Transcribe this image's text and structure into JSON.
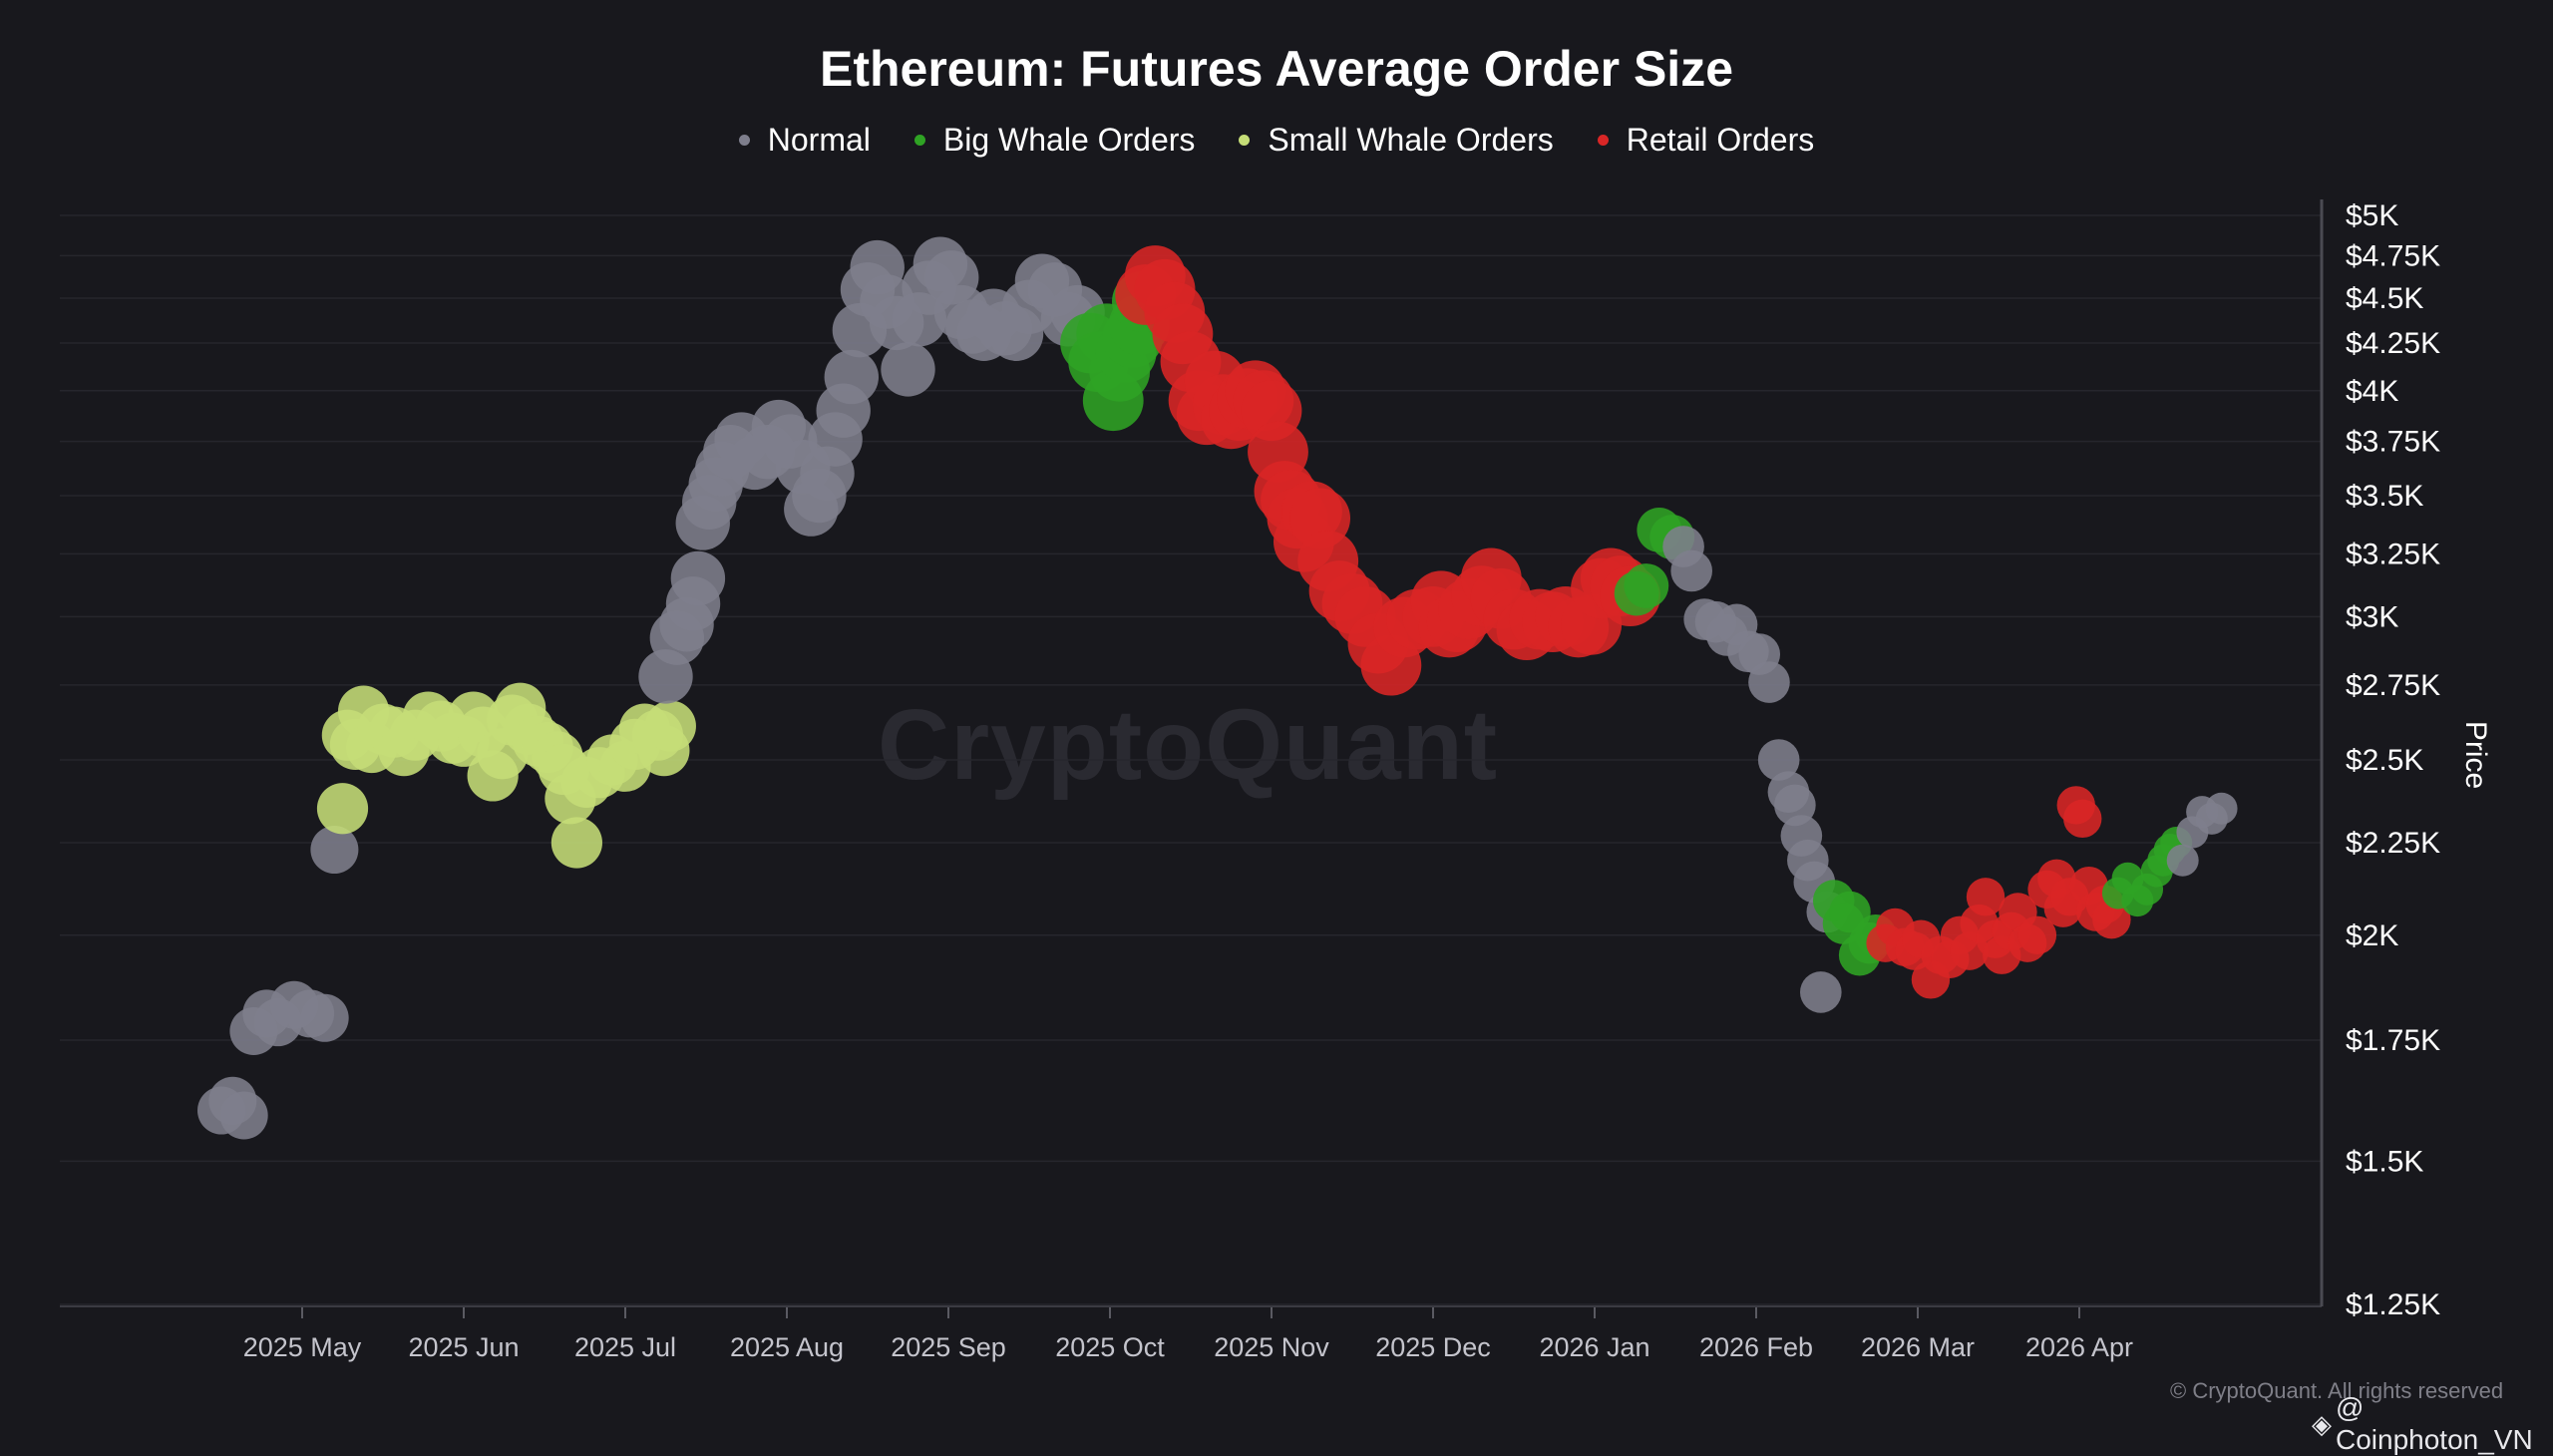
{
  "chart_data": {
    "type": "scatter",
    "title": "Ethereum: Futures Average Order Size",
    "legend": [
      {
        "name": "Normal",
        "color": "#7e7e8c"
      },
      {
        "name": "Big Whale Orders",
        "color": "#2fa324"
      },
      {
        "name": "Small Whale Orders",
        "color": "#c5dd77"
      },
      {
        "name": "Retail Orders",
        "color": "#d92626"
      }
    ],
    "ylabel": "Price",
    "yscale": "log",
    "ylim": [
      1250,
      5000
    ],
    "yticks": [
      {
        "value": 5000,
        "label": "$5K"
      },
      {
        "value": 4750,
        "label": "$4.75K"
      },
      {
        "value": 4500,
        "label": "$4.5K"
      },
      {
        "value": 4250,
        "label": "$4.25K"
      },
      {
        "value": 4000,
        "label": "$4K"
      },
      {
        "value": 3750,
        "label": "$3.75K"
      },
      {
        "value": 3500,
        "label": "$3.5K"
      },
      {
        "value": 3250,
        "label": "$3.25K"
      },
      {
        "value": 3000,
        "label": "$3K"
      },
      {
        "value": 2750,
        "label": "$2.75K"
      },
      {
        "value": 2500,
        "label": "$2.5K"
      },
      {
        "value": 2250,
        "label": "$2.25K"
      },
      {
        "value": 2000,
        "label": "$2K"
      },
      {
        "value": 1750,
        "label": "$1.75K"
      },
      {
        "value": 1500,
        "label": "$1.5K"
      },
      {
        "value": 1250,
        "label": "$1.25K"
      }
    ],
    "xlim": [
      -1.5,
      12.5
    ],
    "xticks": [
      {
        "value": 0,
        "label": "2025 May"
      },
      {
        "value": 1,
        "label": "2025 Jun"
      },
      {
        "value": 2,
        "label": "2025 Jul"
      },
      {
        "value": 3,
        "label": "2025 Aug"
      },
      {
        "value": 4,
        "label": "2025 Sep"
      },
      {
        "value": 5,
        "label": "2025 Oct"
      },
      {
        "value": 6,
        "label": "2025 Nov"
      },
      {
        "value": 7,
        "label": "2025 Dec"
      },
      {
        "value": 8,
        "label": "2026 Jan"
      },
      {
        "value": 9,
        "label": "2026 Feb"
      },
      {
        "value": 10,
        "label": "2026 Mar"
      },
      {
        "value": 11,
        "label": "2026 Apr"
      }
    ],
    "segments": [
      {
        "category": "Normal",
        "size": 15,
        "points": [
          [
            -0.5,
            1600
          ],
          [
            -0.43,
            1620
          ],
          [
            -0.36,
            1590
          ],
          [
            -0.3,
            1770
          ],
          [
            -0.22,
            1810
          ],
          [
            -0.15,
            1790
          ],
          [
            -0.05,
            1830
          ],
          [
            0.05,
            1810
          ],
          [
            0.14,
            1800
          ],
          [
            0.2,
            2230
          ]
        ]
      },
      {
        "category": "Small Whale Orders",
        "size": 16,
        "points": [
          [
            0.25,
            2350
          ],
          [
            0.28,
            2580
          ],
          [
            0.33,
            2550
          ],
          [
            0.38,
            2660
          ],
          [
            0.43,
            2540
          ],
          [
            0.5,
            2600
          ],
          [
            0.57,
            2590
          ],
          [
            0.63,
            2530
          ],
          [
            0.7,
            2580
          ],
          [
            0.78,
            2640
          ],
          [
            0.86,
            2610
          ],
          [
            0.93,
            2570
          ],
          [
            1.0,
            2560
          ],
          [
            1.06,
            2640
          ],
          [
            1.12,
            2590
          ],
          [
            1.18,
            2450
          ],
          [
            1.24,
            2520
          ],
          [
            1.3,
            2630
          ],
          [
            1.35,
            2670
          ],
          [
            1.4,
            2600
          ],
          [
            1.46,
            2560
          ],
          [
            1.52,
            2540
          ],
          [
            1.58,
            2510
          ],
          [
            1.62,
            2470
          ],
          [
            1.66,
            2380
          ],
          [
            1.7,
            2250
          ],
          [
            1.76,
            2430
          ],
          [
            1.84,
            2460
          ],
          [
            1.92,
            2500
          ],
          [
            2.0,
            2480
          ],
          [
            2.06,
            2550
          ],
          [
            2.12,
            2600
          ],
          [
            2.2,
            2580
          ],
          [
            2.24,
            2530
          ],
          [
            2.28,
            2610
          ]
        ]
      },
      {
        "category": "Normal",
        "size": 17,
        "points": [
          [
            2.25,
            2780
          ],
          [
            2.32,
            2920
          ],
          [
            2.38,
            2970
          ],
          [
            2.42,
            3050
          ],
          [
            2.45,
            3150
          ],
          [
            2.48,
            3380
          ],
          [
            2.52,
            3470
          ],
          [
            2.56,
            3550
          ],
          [
            2.6,
            3620
          ],
          [
            2.65,
            3700
          ],
          [
            2.72,
            3760
          ],
          [
            2.8,
            3650
          ],
          [
            2.88,
            3700
          ],
          [
            2.95,
            3820
          ],
          [
            3.02,
            3750
          ],
          [
            3.1,
            3630
          ],
          [
            3.15,
            3440
          ],
          [
            3.2,
            3500
          ],
          [
            3.25,
            3600
          ],
          [
            3.3,
            3760
          ],
          [
            3.35,
            3900
          ],
          [
            3.4,
            4070
          ],
          [
            3.45,
            4320
          ],
          [
            3.5,
            4550
          ],
          [
            3.56,
            4680
          ],
          [
            3.62,
            4480
          ],
          [
            3.68,
            4360
          ],
          [
            3.75,
            4110
          ],
          [
            3.82,
            4380
          ],
          [
            3.88,
            4560
          ],
          [
            3.95,
            4700
          ],
          [
            4.02,
            4620
          ],
          [
            4.08,
            4420
          ],
          [
            4.15,
            4340
          ],
          [
            4.22,
            4300
          ],
          [
            4.28,
            4400
          ],
          [
            4.35,
            4330
          ],
          [
            4.42,
            4300
          ],
          [
            4.5,
            4450
          ],
          [
            4.58,
            4600
          ],
          [
            4.66,
            4550
          ],
          [
            4.74,
            4380
          ],
          [
            4.8,
            4420
          ]
        ]
      },
      {
        "category": "Big Whale Orders",
        "size": 19,
        "points": [
          [
            4.88,
            4250
          ],
          [
            4.93,
            4150
          ],
          [
            4.98,
            4300
          ],
          [
            5.02,
            3950
          ],
          [
            5.06,
            4100
          ],
          [
            5.1,
            4200
          ],
          [
            5.14,
            4280
          ],
          [
            5.18,
            4350
          ],
          [
            5.2,
            4480
          ]
        ]
      },
      {
        "category": "Retail Orders",
        "size": 19,
        "points": [
          [
            5.22,
            4520
          ],
          [
            5.28,
            4630
          ],
          [
            5.34,
            4550
          ],
          [
            5.4,
            4420
          ],
          [
            5.45,
            4300
          ],
          [
            5.5,
            4150
          ],
          [
            5.55,
            3950
          ],
          [
            5.6,
            3880
          ],
          [
            5.65,
            4050
          ],
          [
            5.7,
            3930
          ],
          [
            5.75,
            3860
          ],
          [
            5.8,
            3900
          ],
          [
            5.85,
            3960
          ],
          [
            5.9,
            4000
          ],
          [
            5.95,
            3950
          ],
          [
            6.0,
            3900
          ],
          [
            6.04,
            3700
          ],
          [
            6.08,
            3520
          ],
          [
            6.12,
            3480
          ],
          [
            6.16,
            3400
          ],
          [
            6.2,
            3300
          ],
          [
            6.25,
            3430
          ],
          [
            6.3,
            3400
          ],
          [
            6.35,
            3220
          ],
          [
            6.42,
            3100
          ],
          [
            6.5,
            3050
          ],
          [
            6.58,
            3000
          ],
          [
            6.66,
            2900
          ],
          [
            6.74,
            2820
          ],
          [
            6.82,
            2960
          ],
          [
            6.9,
            2990
          ],
          [
            7.0,
            3000
          ],
          [
            7.05,
            3060
          ],
          [
            7.1,
            2960
          ],
          [
            7.15,
            2980
          ],
          [
            7.22,
            3030
          ],
          [
            7.3,
            3080
          ],
          [
            7.36,
            3150
          ],
          [
            7.42,
            3070
          ],
          [
            7.5,
            2990
          ],
          [
            7.58,
            2950
          ],
          [
            7.66,
            2990
          ],
          [
            7.74,
            2980
          ],
          [
            7.82,
            3000
          ],
          [
            7.9,
            2960
          ],
          [
            7.98,
            2970
          ],
          [
            8.04,
            3110
          ],
          [
            8.1,
            3150
          ],
          [
            8.16,
            3120
          ],
          [
            8.22,
            3080
          ]
        ]
      },
      {
        "category": "Big Whale Orders",
        "size": 14,
        "points": [
          [
            8.26,
            3090
          ],
          [
            8.32,
            3120
          ],
          [
            8.4,
            3350
          ],
          [
            8.48,
            3320
          ]
        ]
      },
      {
        "category": "Normal",
        "size": 13,
        "points": [
          [
            8.55,
            3280
          ],
          [
            8.6,
            3180
          ],
          [
            8.68,
            2990
          ],
          [
            8.75,
            2980
          ],
          [
            8.82,
            2930
          ],
          [
            8.88,
            2970
          ],
          [
            8.95,
            2870
          ],
          [
            9.02,
            2860
          ],
          [
            9.08,
            2760
          ],
          [
            9.14,
            2500
          ],
          [
            9.2,
            2400
          ],
          [
            9.24,
            2360
          ],
          [
            9.28,
            2270
          ],
          [
            9.32,
            2200
          ],
          [
            9.36,
            2140
          ],
          [
            9.4,
            1860
          ],
          [
            9.44,
            2060
          ]
        ]
      },
      {
        "category": "Big Whale Orders",
        "size": 13,
        "points": [
          [
            9.48,
            2090
          ],
          [
            9.54,
            2030
          ],
          [
            9.58,
            2060
          ],
          [
            9.64,
            1950
          ],
          [
            9.7,
            1980
          ],
          [
            9.74,
            2000
          ]
        ]
      },
      {
        "category": "Retail Orders",
        "size": 12,
        "points": [
          [
            9.8,
            1980
          ],
          [
            9.86,
            2020
          ],
          [
            9.92,
            1970
          ],
          [
            9.98,
            1960
          ],
          [
            10.02,
            1990
          ],
          [
            10.08,
            1890
          ],
          [
            10.14,
            1950
          ],
          [
            10.2,
            1940
          ],
          [
            10.26,
            2000
          ],
          [
            10.32,
            1960
          ],
          [
            10.38,
            2030
          ],
          [
            10.42,
            2100
          ],
          [
            10.48,
            1990
          ],
          [
            10.52,
            1950
          ],
          [
            10.58,
            2010
          ],
          [
            10.62,
            2060
          ],
          [
            10.68,
            1980
          ],
          [
            10.74,
            2000
          ],
          [
            10.8,
            2120
          ],
          [
            10.86,
            2150
          ],
          [
            10.9,
            2070
          ],
          [
            10.94,
            2100
          ],
          [
            10.98,
            2360
          ],
          [
            11.02,
            2320
          ],
          [
            11.06,
            2130
          ],
          [
            11.1,
            2060
          ],
          [
            11.16,
            2080
          ],
          [
            11.2,
            2040
          ]
        ]
      },
      {
        "category": "Big Whale Orders",
        "size": 10,
        "points": [
          [
            11.24,
            2110
          ],
          [
            11.3,
            2150
          ],
          [
            11.36,
            2090
          ],
          [
            11.42,
            2120
          ],
          [
            11.48,
            2170
          ],
          [
            11.52,
            2200
          ],
          [
            11.56,
            2230
          ],
          [
            11.6,
            2250
          ]
        ]
      },
      {
        "category": "Normal",
        "size": 10,
        "points": [
          [
            11.64,
            2200
          ],
          [
            11.7,
            2280
          ],
          [
            11.76,
            2340
          ],
          [
            11.82,
            2320
          ],
          [
            11.88,
            2350
          ]
        ]
      }
    ]
  },
  "watermark": "CryptoQuant",
  "copyright": "© CryptoQuant. All rights reserved",
  "credit": "@ Coinphoton_VN"
}
